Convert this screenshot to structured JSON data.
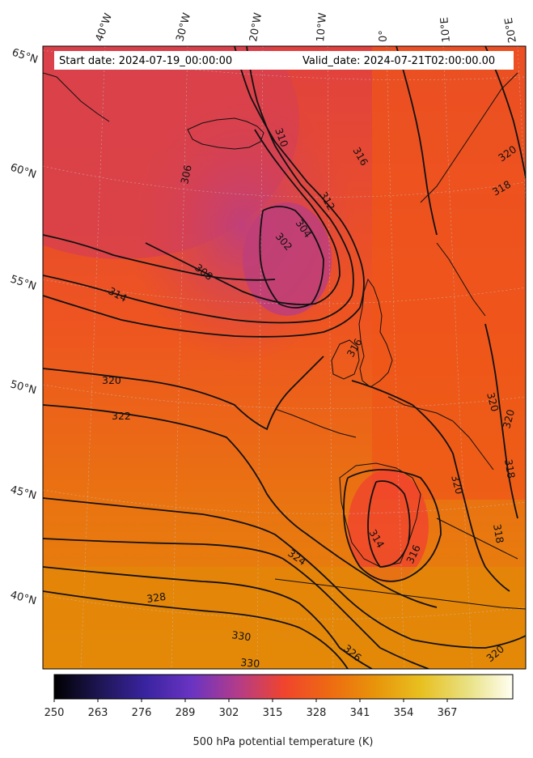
{
  "header": {
    "start_date": "Start date: 2024-07-19_00:00:00",
    "valid_date": "Valid_date: 2024-07-21T02:00:00.00"
  },
  "map": {
    "top_lon_labels": [
      "40°W",
      "30°W",
      "20°W",
      "10°W",
      "0°",
      "10°E",
      "20°E"
    ],
    "left_lat_labels": [
      "65°N",
      "60°N",
      "55°N",
      "50°N",
      "45°N",
      "40°N"
    ]
  },
  "contour_labels": [
    "310",
    "316",
    "306",
    "312",
    "304",
    "302",
    "308",
    "314",
    "320",
    "322",
    "316",
    "320",
    "320",
    "318",
    "320",
    "318",
    "314",
    "316",
    "324",
    "328",
    "330",
    "330",
    "326",
    "320",
    "318",
    "320"
  ],
  "colorbar": {
    "ticks": [
      "250",
      "263",
      "276",
      "289",
      "302",
      "315",
      "328",
      "341",
      "354",
      "367"
    ],
    "label": "500 hPa potential temperature (K)",
    "colors": [
      "#000000",
      "#1e1654",
      "#3a24a0",
      "#6a34c2",
      "#b23c8a",
      "#f0442e",
      "#ee6a12",
      "#e8940a",
      "#e8c020",
      "#e8e080",
      "#fffff2"
    ]
  }
}
